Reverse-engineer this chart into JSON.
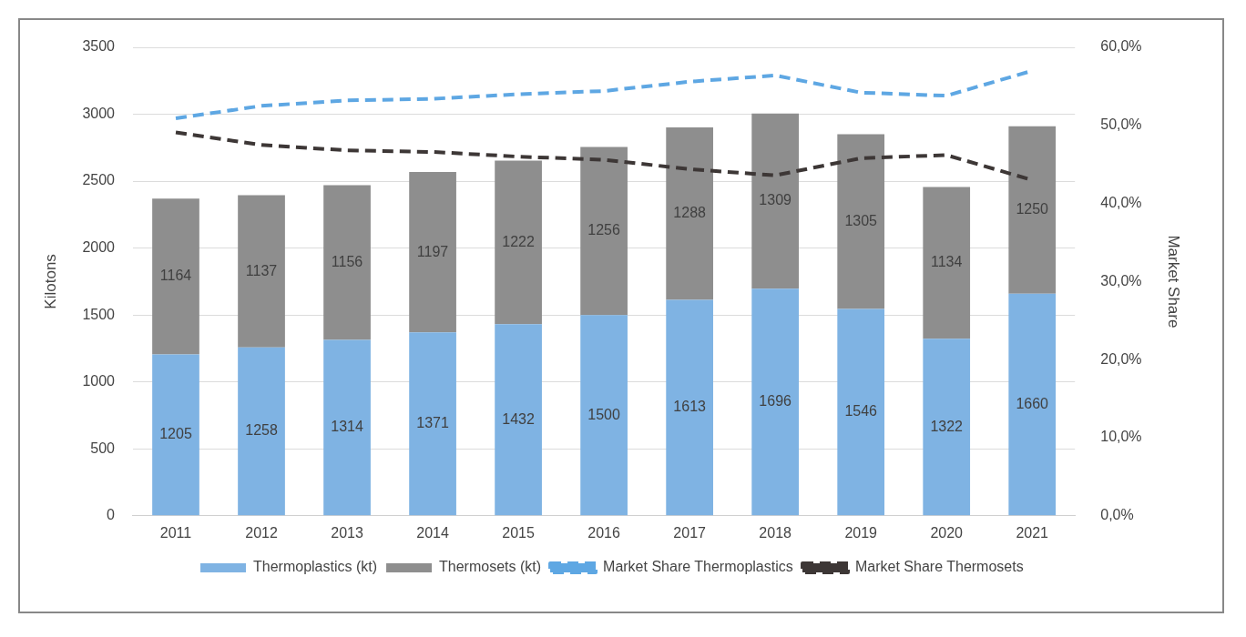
{
  "chart_data": {
    "type": "bar",
    "stacked": true,
    "categories": [
      "2011",
      "2012",
      "2013",
      "2014",
      "2015",
      "2016",
      "2017",
      "2018",
      "2019",
      "2020",
      "2021"
    ],
    "series": [
      {
        "name": "Thermoplastics (kt)",
        "color": "#7fb3e3",
        "values": [
          1205,
          1258,
          1314,
          1371,
          1432,
          1500,
          1613,
          1696,
          1546,
          1322,
          1660
        ],
        "value_labels": [
          "1205",
          "1258",
          "1314",
          "1371",
          "1432",
          "1500",
          "1613",
          "1696",
          "1546",
          "1322",
          "1660"
        ]
      },
      {
        "name": "Thermosets (kt)",
        "color": "#8e8e8e",
        "values": [
          1164,
          1137,
          1156,
          1197,
          1222,
          1256,
          1288,
          1309,
          1305,
          1134,
          1250
        ],
        "value_labels": [
          "1164",
          "1137",
          "1156",
          "1197",
          "1222",
          "1256",
          "1288",
          "1309",
          "1305",
          "1134",
          "1250"
        ]
      },
      {
        "name": "Market Share Thermoplastics",
        "type": "line",
        "axis": "y2",
        "color": "#5ea7e3",
        "line_style": "dashed",
        "marker": "none",
        "values": [
          50.9,
          52.5,
          53.2,
          53.4,
          54.0,
          54.4,
          55.6,
          56.4,
          54.2,
          53.8,
          57.0
        ]
      },
      {
        "name": "Market Share Thermosets",
        "type": "line",
        "axis": "y2",
        "color": "#3d3736",
        "line_style": "dashed",
        "marker": "none",
        "values": [
          49.1,
          47.5,
          46.8,
          46.6,
          46.0,
          45.6,
          44.4,
          43.6,
          45.8,
          46.2,
          43.0
        ]
      }
    ],
    "ylabel": "Kilotons",
    "y2label": "Market Share",
    "ylim": [
      0,
      3500
    ],
    "yticks": [
      0,
      500,
      1000,
      1500,
      2000,
      2500,
      3000,
      3500
    ],
    "y2lim": [
      0,
      60
    ],
    "y2ticks": [
      {
        "value": 0,
        "label": "0,0%"
      },
      {
        "value": 10,
        "label": "10,0%"
      },
      {
        "value": 20,
        "label": "20,0%"
      },
      {
        "value": 30,
        "label": "30,0%"
      },
      {
        "value": 40,
        "label": "40,0%"
      },
      {
        "value": 50,
        "label": "50,0%"
      },
      {
        "value": 60,
        "label": "60,0%"
      }
    ],
    "grid": "y",
    "legend": "bottom"
  }
}
